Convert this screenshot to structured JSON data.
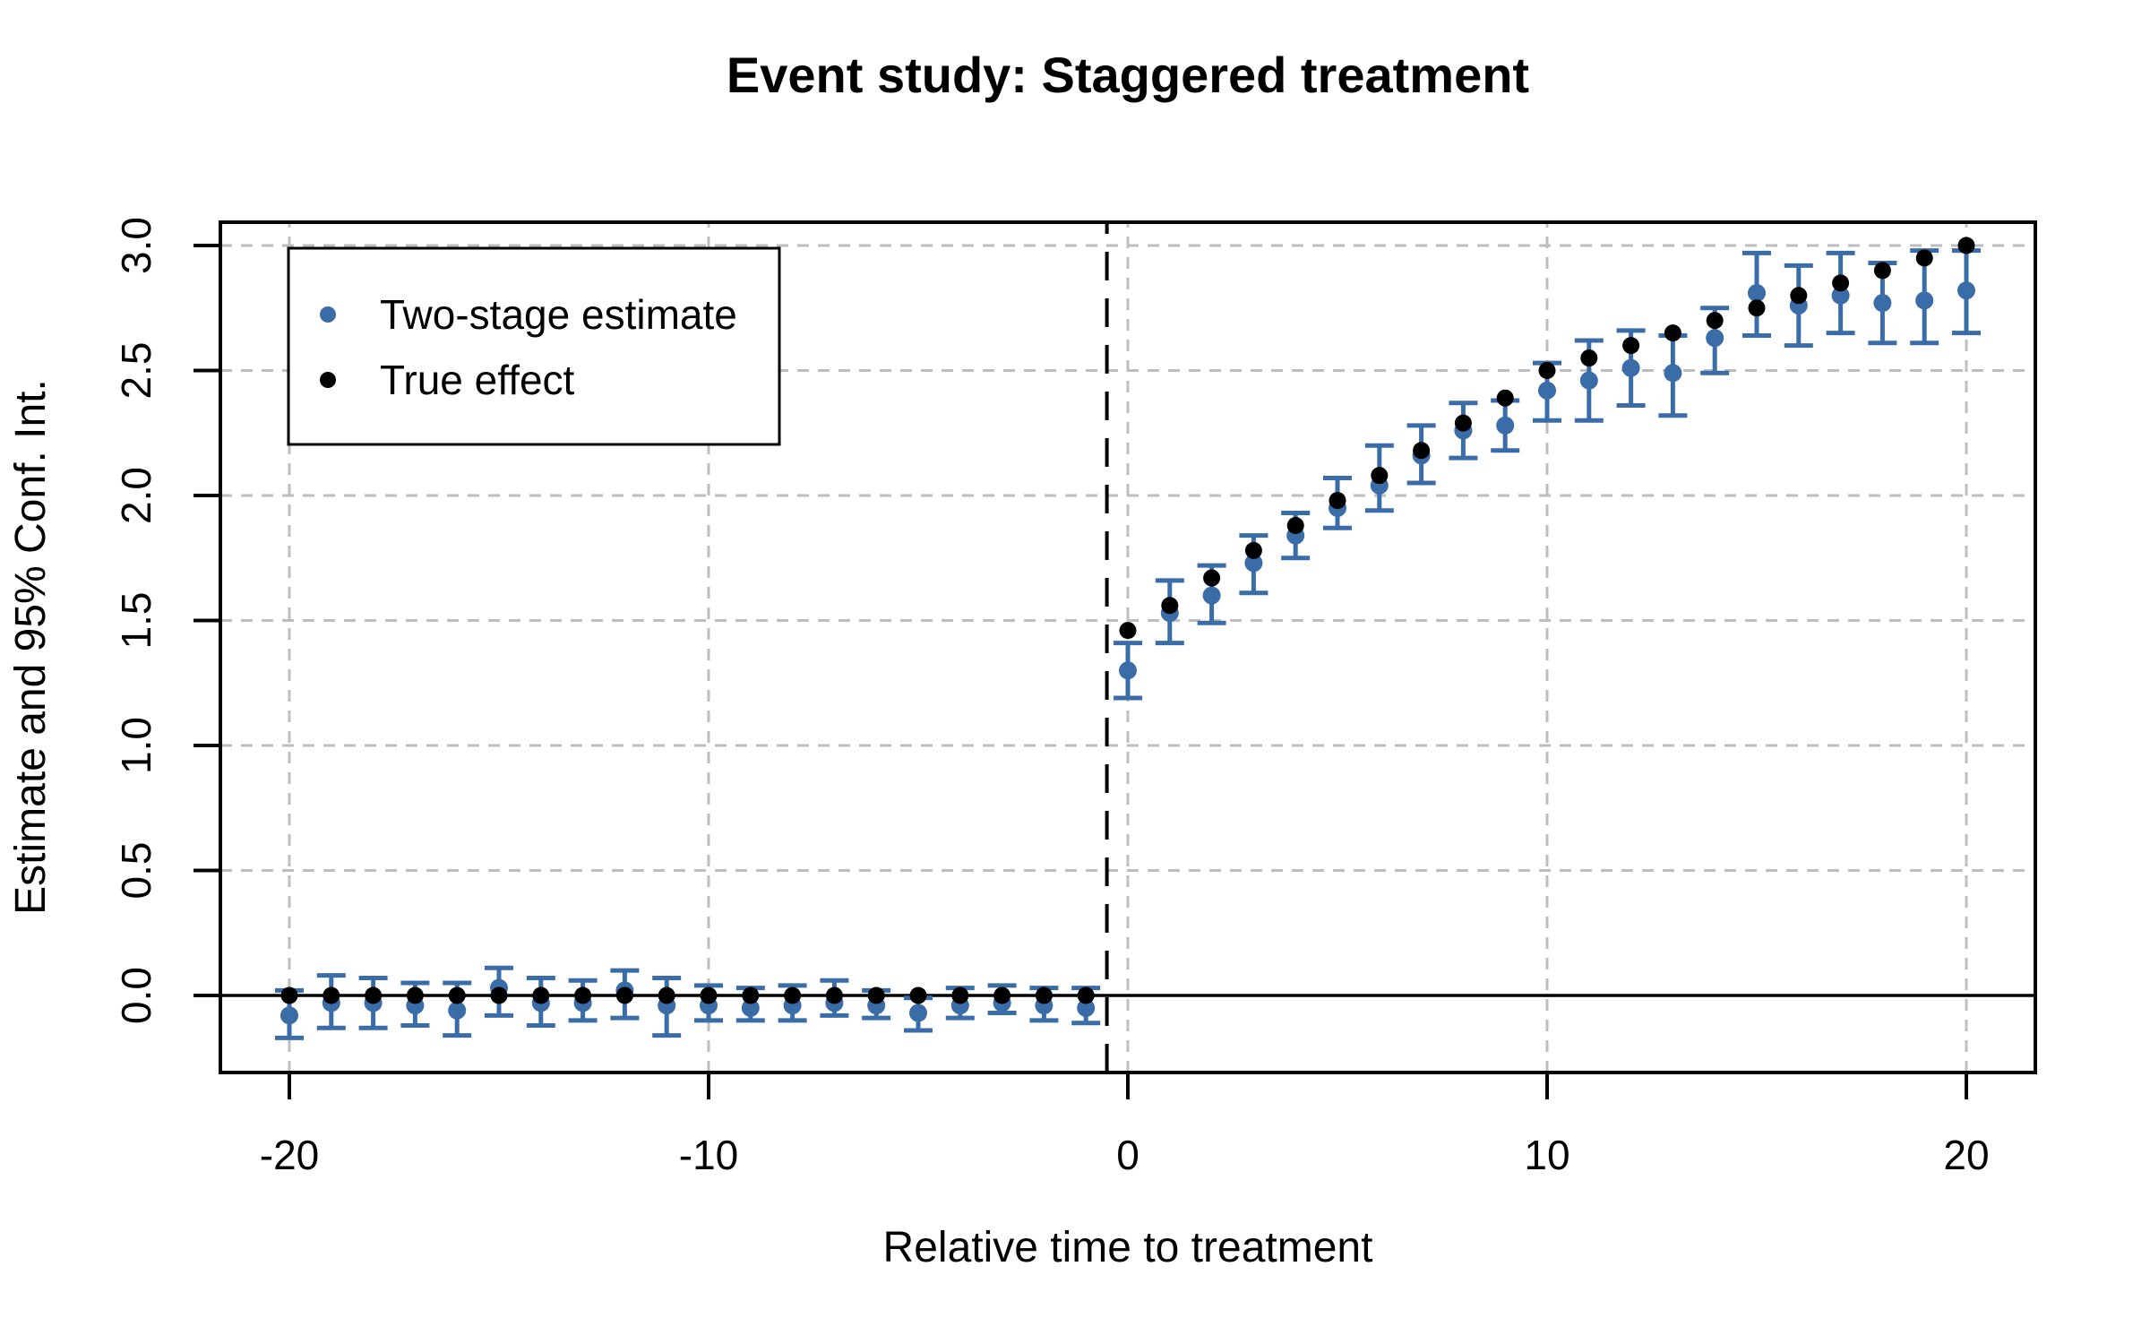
{
  "chart_data": {
    "type": "scatter",
    "title": "Event study: Staggered treatment",
    "xlabel": "Relative time to treatment",
    "ylabel": "Estimate and 95% Conf. Int.",
    "x_ticks": [
      -20,
      -10,
      0,
      10,
      20
    ],
    "x_tick_labels": [
      "-20",
      "-10",
      "0",
      "10",
      "20"
    ],
    "y_ticks": [
      0.0,
      0.5,
      1.0,
      1.5,
      2.0,
      2.5,
      3.0
    ],
    "y_tick_labels": [
      "0.0",
      "0.5",
      "1.0",
      "1.5",
      "2.0",
      "2.5",
      "3.0"
    ],
    "xlim": [
      -21.6,
      21.6
    ],
    "ylim": [
      -0.31,
      3.09
    ],
    "grid": true,
    "grid_color": "#BEBEBE",
    "reference_lines": {
      "horizontal_solid_at": 0,
      "vertical_dashed_at": -0.5
    },
    "legend": {
      "position": "top-left",
      "entries": [
        {
          "label": "Two-stage estimate",
          "color": "#3A6CA8"
        },
        {
          "label": "True effect",
          "color": "#000000"
        }
      ]
    },
    "x": [
      -20,
      -19,
      -18,
      -17,
      -16,
      -15,
      -14,
      -13,
      -12,
      -11,
      -10,
      -9,
      -8,
      -7,
      -6,
      -5,
      -4,
      -3,
      -2,
      -1,
      0,
      1,
      2,
      3,
      4,
      5,
      6,
      7,
      8,
      9,
      10,
      11,
      12,
      13,
      14,
      15,
      16,
      17,
      18,
      19,
      20
    ],
    "series": [
      {
        "name": "Two-stage estimate",
        "color": "#3A6CA8",
        "values": [
          -0.08,
          -0.03,
          -0.03,
          -0.04,
          -0.06,
          0.03,
          -0.03,
          -0.03,
          0.02,
          -0.04,
          -0.04,
          -0.05,
          -0.04,
          -0.03,
          -0.04,
          -0.07,
          -0.04,
          -0.03,
          -0.04,
          -0.05,
          1.3,
          1.53,
          1.6,
          1.73,
          1.84,
          1.95,
          2.04,
          2.16,
          2.26,
          2.28,
          2.42,
          2.46,
          2.51,
          2.49,
          2.63,
          2.81,
          2.76,
          2.8,
          2.77,
          2.78,
          2.82
        ],
        "ci_low": [
          -0.17,
          -0.13,
          -0.13,
          -0.12,
          -0.16,
          -0.08,
          -0.12,
          -0.1,
          -0.09,
          -0.16,
          -0.1,
          -0.1,
          -0.1,
          -0.08,
          -0.09,
          -0.14,
          -0.09,
          -0.07,
          -0.1,
          -0.11,
          1.19,
          1.41,
          1.49,
          1.61,
          1.75,
          1.87,
          1.94,
          2.05,
          2.15,
          2.18,
          2.3,
          2.3,
          2.36,
          2.32,
          2.49,
          2.64,
          2.6,
          2.65,
          2.61,
          2.61,
          2.65
        ],
        "ci_high": [
          0.02,
          0.08,
          0.07,
          0.05,
          0.05,
          0.11,
          0.07,
          0.06,
          0.1,
          0.07,
          0.04,
          0.03,
          0.04,
          0.06,
          0.02,
          -0.01,
          0.03,
          0.04,
          0.03,
          0.03,
          1.41,
          1.66,
          1.72,
          1.84,
          1.93,
          2.07,
          2.2,
          2.28,
          2.37,
          2.38,
          2.53,
          2.62,
          2.66,
          2.64,
          2.75,
          2.97,
          2.92,
          2.97,
          2.93,
          2.98,
          2.98
        ]
      },
      {
        "name": "True effect",
        "color": "#000000",
        "values": [
          0,
          0,
          0,
          0,
          0,
          0,
          0,
          0,
          0,
          0,
          0,
          0,
          0,
          0,
          0,
          0,
          0,
          0,
          0,
          0,
          1.46,
          1.56,
          1.67,
          1.78,
          1.88,
          1.98,
          2.08,
          2.18,
          2.29,
          2.39,
          2.5,
          2.55,
          2.6,
          2.65,
          2.7,
          2.75,
          2.8,
          2.85,
          2.9,
          2.95,
          3.0
        ]
      }
    ]
  }
}
